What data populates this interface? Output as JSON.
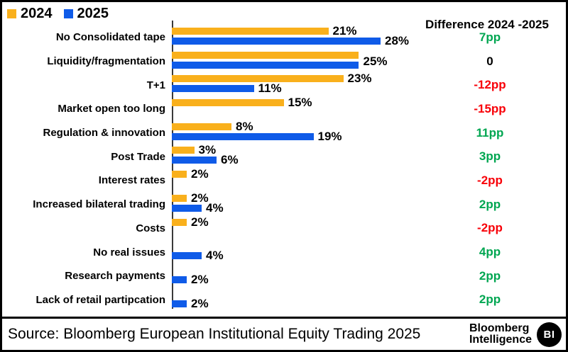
{
  "legend": {
    "items": [
      {
        "label": "2024",
        "color": "#F9B01C"
      },
      {
        "label": "2025",
        "color": "#0F5BE8"
      }
    ]
  },
  "diff_header": "Difference 2024 -2025",
  "colors": {
    "bar_2024": "#F9B01C",
    "bar_2025": "#0F5BE8",
    "diff_positive": "#00A651",
    "diff_negative": "#F80008",
    "diff_zero": "#000000",
    "axis": "#3a3a3a"
  },
  "chart_data": {
    "type": "bar",
    "orientation": "horizontal",
    "unit": "%",
    "xlim": [
      0,
      28
    ],
    "grid": false,
    "legend_position": "top-left",
    "categories": [
      "No Consolidated tape",
      "Liquidity/fragmentation",
      "T+1",
      "Market open too long",
      "Regulation & innovation",
      "Post Trade",
      "Interest rates",
      "Increased bilateral trading",
      "Costs",
      "No real issues",
      "Research payments",
      "Lack of retail partipcation"
    ],
    "series": [
      {
        "name": "2024",
        "values": [
          21,
          25,
          23,
          15,
          8,
          3,
          2,
          2,
          2,
          null,
          null,
          null
        ]
      },
      {
        "name": "2025",
        "values": [
          28,
          25,
          11,
          null,
          19,
          6,
          null,
          4,
          null,
          4,
          2,
          2
        ]
      }
    ],
    "rows": [
      {
        "category": "No Consolidated tape",
        "y2024": 21,
        "y2025": 28,
        "label_2024": "21%",
        "label_2025": "28%",
        "diff": "7pp",
        "diff_color": "#00A651"
      },
      {
        "category": "Liquidity/fragmentation",
        "y2024": 25,
        "y2025": 25,
        "shared_label": "25%",
        "diff": "0",
        "diff_color": "#000000"
      },
      {
        "category": "T+1",
        "y2024": 23,
        "y2025": 11,
        "label_2024": "23%",
        "label_2025": "11%",
        "diff": "-12pp",
        "diff_color": "#F80008"
      },
      {
        "category": "Market open too long",
        "y2024": 15,
        "y2025": null,
        "label_2024": "15%",
        "diff": "-15pp",
        "diff_color": "#F80008"
      },
      {
        "category": "Regulation & innovation",
        "y2024": 8,
        "y2025": 19,
        "label_2024": "8%",
        "label_2025": "19%",
        "diff": "11pp",
        "diff_color": "#00A651"
      },
      {
        "category": "Post Trade",
        "y2024": 3,
        "y2025": 6,
        "label_2024": "3%",
        "label_2025": "6%",
        "diff": "3pp",
        "diff_color": "#00A651"
      },
      {
        "category": "Interest rates",
        "y2024": 2,
        "y2025": null,
        "label_2024": "2%",
        "diff": "-2pp",
        "diff_color": "#F80008"
      },
      {
        "category": "Increased bilateral trading",
        "y2024": 2,
        "y2025": 4,
        "label_2024": "2%",
        "label_2025": "4%",
        "diff": "2pp",
        "diff_color": "#00A651"
      },
      {
        "category": "Costs",
        "y2024": 2,
        "y2025": null,
        "label_2024": "2%",
        "diff": "-2pp",
        "diff_color": "#F80008"
      },
      {
        "category": "No real issues",
        "y2024": null,
        "y2025": 4,
        "label_2025": "4%",
        "diff": "4pp",
        "diff_color": "#00A651"
      },
      {
        "category": "Research payments",
        "y2024": null,
        "y2025": 2,
        "label_2025": "2%",
        "diff": "2pp",
        "diff_color": "#00A651"
      },
      {
        "category": "Lack of retail partipcation",
        "y2024": null,
        "y2025": 2,
        "label_2025": "2%",
        "diff": "2pp",
        "diff_color": "#00A651"
      }
    ]
  },
  "source": {
    "text": "Source: Bloomberg European Institutional Equity Trading 2025"
  },
  "logo": {
    "line1": "Bloomberg",
    "line2": "Intelligence",
    "badge": "BI"
  }
}
